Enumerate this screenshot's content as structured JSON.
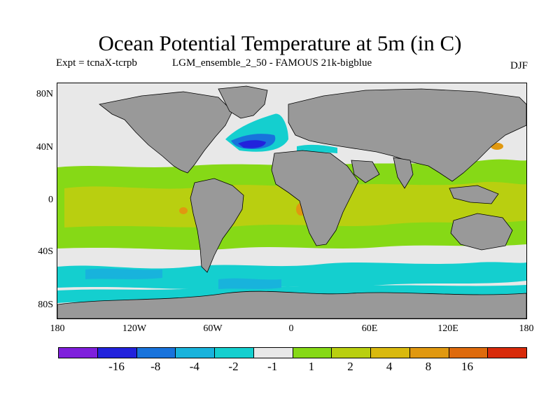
{
  "title": "Ocean Potential Temperature at 5m (in C)",
  "subtitle_left": "Expt = tcnaX-tcrpb",
  "subtitle_mid": "LGM_ensemble_2_50 - FAMOUS 21k-bigblue",
  "subtitle_right": "DJF",
  "lat_labels": [
    "80N",
    "40N",
    "0",
    "40S",
    "80S"
  ],
  "lon_labels": [
    "180",
    "120W",
    "60W",
    "0",
    "60E",
    "120E",
    "180"
  ],
  "colorbar": {
    "colors": [
      "#7f1fdc",
      "#2222dc",
      "#1873dc",
      "#18b3dc",
      "#14cfcf",
      "#e8e8e8",
      "#86d916",
      "#b9cf10",
      "#d9b90e",
      "#e09810",
      "#de6a0c",
      "#d82a0a"
    ],
    "labels": [
      "-16",
      "-8",
      "-4",
      "-2",
      "-1",
      "1",
      "2",
      "4",
      "8",
      "16"
    ]
  },
  "map_colors": {
    "land": "#999999",
    "neutral": "#e8e8e8",
    "cyan": "#14cfcf",
    "light_blue": "#18b3dc",
    "blue": "#1873dc",
    "dark_blue": "#2222dc",
    "green": "#86d916",
    "yellow": "#b9cf10",
    "orange": "#d9b90e",
    "orange_dark": "#e09810"
  }
}
